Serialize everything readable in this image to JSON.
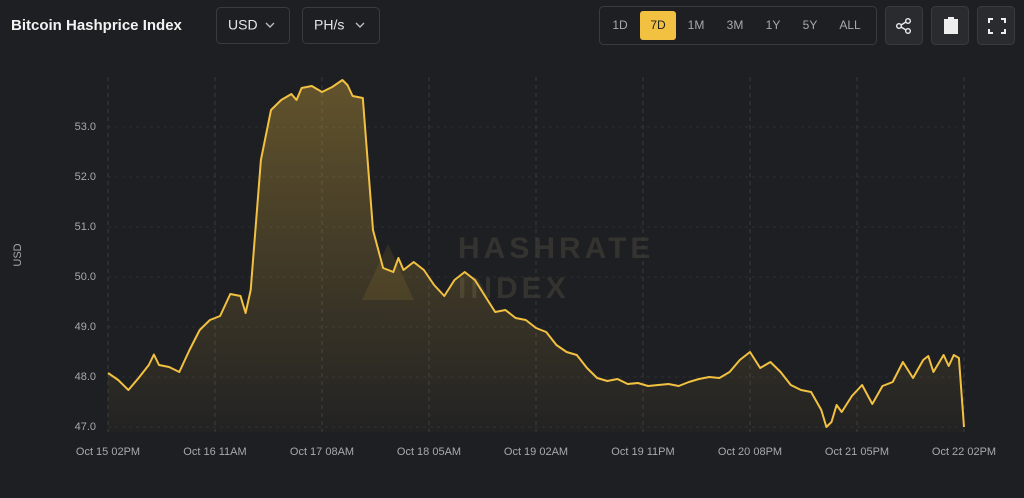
{
  "controls": {
    "currency": "USD",
    "unit": "PH/s",
    "ranges": [
      "1D",
      "7D",
      "1M",
      "3M",
      "1Y",
      "5Y",
      "ALL"
    ],
    "selected": "7D"
  },
  "watermark": [
    "HASHRATE",
    "INDEX"
  ],
  "chart_data": {
    "type": "line",
    "title": "Bitcoin Hashprice Index",
    "y_label": "USD",
    "color": "#f2c141",
    "grid": true,
    "x": [
      0,
      2,
      4,
      6,
      8,
      9,
      10,
      12,
      14,
      16,
      18,
      20,
      22,
      24,
      26,
      27,
      28,
      30,
      32,
      34,
      36,
      37,
      38,
      40,
      42,
      44,
      46,
      47,
      48,
      50,
      52,
      54,
      56,
      57,
      58,
      60,
      62,
      64,
      66,
      68,
      70,
      72,
      74,
      76,
      78,
      80,
      82,
      84,
      86,
      88,
      90,
      92,
      94,
      96,
      98,
      100,
      102,
      104,
      106,
      108,
      110,
      112,
      114,
      116,
      118,
      120,
      122,
      124,
      126,
      128,
      130,
      132,
      134,
      136,
      138,
      140,
      141,
      142,
      143,
      144,
      146,
      148,
      150,
      152,
      154,
      156,
      158,
      160,
      161,
      162,
      164,
      165,
      166,
      167,
      168
    ],
    "values": [
      48.08,
      47.94,
      47.74,
      47.98,
      48.24,
      48.45,
      48.24,
      48.2,
      48.1,
      48.54,
      48.94,
      49.14,
      49.22,
      49.66,
      49.62,
      49.28,
      49.74,
      52.34,
      53.34,
      53.54,
      53.66,
      53.54,
      53.78,
      53.82,
      53.7,
      53.8,
      53.94,
      53.84,
      53.62,
      53.58,
      50.94,
      50.18,
      50.1,
      50.38,
      50.14,
      50.3,
      50.14,
      49.84,
      49.62,
      49.94,
      50.1,
      49.94,
      49.62,
      49.3,
      49.34,
      49.18,
      49.14,
      48.98,
      48.9,
      48.64,
      48.5,
      48.44,
      48.18,
      47.98,
      47.92,
      47.96,
      47.86,
      47.88,
      47.82,
      47.84,
      47.86,
      47.82,
      47.9,
      47.96,
      48.0,
      47.98,
      48.1,
      48.34,
      48.5,
      48.18,
      48.3,
      48.1,
      47.84,
      47.74,
      47.7,
      47.34,
      47.0,
      47.1,
      47.44,
      47.3,
      47.62,
      47.84,
      47.46,
      47.82,
      47.9,
      48.3,
      47.98,
      48.34,
      48.42,
      48.1,
      48.44,
      48.22,
      48.44,
      48.38,
      47.0
    ],
    "xlim": [
      0,
      168
    ],
    "xticks": [
      {
        "value": 0,
        "label": "Oct 15 02PM"
      },
      {
        "value": 21,
        "label": "Oct 16 11AM"
      },
      {
        "value": 42,
        "label": "Oct 17 08AM"
      },
      {
        "value": 63,
        "label": "Oct 18 05AM"
      },
      {
        "value": 84,
        "label": "Oct 19 02AM"
      },
      {
        "value": 105,
        "label": "Oct 19 11PM"
      },
      {
        "value": 126,
        "label": "Oct 20 08PM"
      },
      {
        "value": 147,
        "label": "Oct 21 05PM"
      },
      {
        "value": 168,
        "label": "Oct 22 02PM"
      }
    ],
    "ylim": [
      46.9,
      54.0
    ],
    "yticks": [
      {
        "value": 47,
        "label": "47.0"
      },
      {
        "value": 48,
        "label": "48.0"
      },
      {
        "value": 49,
        "label": "49.0"
      },
      {
        "value": 50,
        "label": "50.0"
      },
      {
        "value": 51,
        "label": "51.0"
      },
      {
        "value": 52,
        "label": "52.0"
      },
      {
        "value": 53,
        "label": "53.0"
      }
    ]
  }
}
